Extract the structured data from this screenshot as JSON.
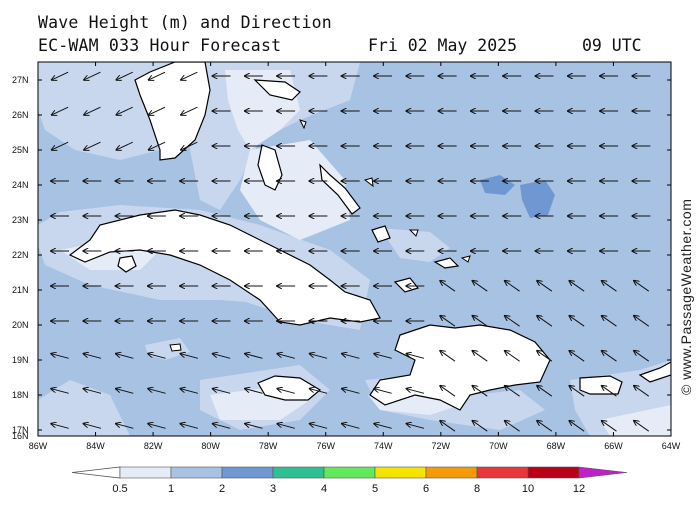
{
  "header": {
    "line1": "Wave Height (m) and Direction",
    "line2": "EC-WAM 033 Hour Forecast",
    "date": "Fri 02 May 2025",
    "time": "09 UTC"
  },
  "watermark": "© www.PassageWeather.com",
  "axes": {
    "lat_labels": [
      "27N",
      "26N",
      "25N",
      "24N",
      "23N",
      "22N",
      "21N",
      "20N",
      "19N",
      "18N",
      "17N",
      "16N"
    ],
    "lon_labels": [
      "86W",
      "84W",
      "82W",
      "80W",
      "78W",
      "76W",
      "74W",
      "72W",
      "70W",
      "68W",
      "66W",
      "64W"
    ]
  },
  "colorbar": {
    "labels": [
      "0.5",
      "1",
      "2",
      "3",
      "4",
      "5",
      "6",
      "8",
      "10",
      "12"
    ],
    "colors": [
      "#e6ecf7",
      "#c8d7ee",
      "#a8c2e4",
      "#6f98d3",
      "#2ebf92",
      "#61e85c",
      "#f4e400",
      "#f59a08",
      "#e8373b",
      "#b90017",
      "#c020c8"
    ]
  },
  "map_colors": {
    "ocean_base": "#a8c2e4",
    "low_wave": "#c8d7ee",
    "calm": "#e6ecf7",
    "high_wave": "#6f98d3",
    "land": "#ffffff"
  },
  "arrow_field": {
    "direction": "toward west (easterly waves)"
  }
}
